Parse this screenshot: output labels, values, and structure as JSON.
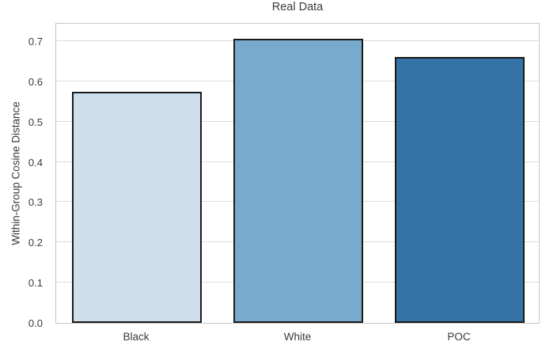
{
  "chart_data": {
    "type": "bar",
    "title": "Real Data",
    "categories": [
      "Black",
      "White",
      "POC"
    ],
    "values": [
      0.575,
      0.705,
      0.66
    ],
    "bar_colors": [
      "#cfdeec",
      "#77aacc",
      "#3572a5"
    ],
    "bar_edge_color": "#1a1a1a",
    "xlabel": "",
    "ylabel": "Within-Group Cosine Distance",
    "ylim": [
      0,
      0.747
    ],
    "yticks": [
      0.0,
      0.1,
      0.2,
      0.3,
      0.4,
      0.5,
      0.6,
      0.7
    ],
    "ytick_labels": [
      "0.0",
      "0.1",
      "0.2",
      "0.3",
      "0.4",
      "0.5",
      "0.6",
      "0.7"
    ],
    "grid": "horizontal",
    "legend": "none",
    "bar_width_fraction": 0.8
  },
  "style_colors": {
    "background": "#ffffff",
    "gridline": "#dcdcdc",
    "spine": "#c6c6c6",
    "text": "#3a3a3a"
  }
}
